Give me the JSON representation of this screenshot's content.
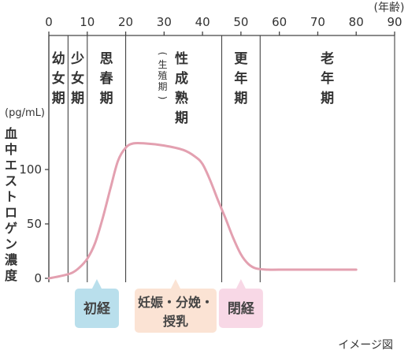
{
  "chart_data": {
    "type": "line",
    "x_axis": {
      "unit_label": "(年齢)",
      "ticks": [
        0,
        10,
        20,
        30,
        40,
        50,
        60,
        70,
        80,
        90
      ],
      "range": [
        0,
        90
      ]
    },
    "y_axis": {
      "unit": "(pg/mL)",
      "label": "血中エストロゲン濃度",
      "ticks": [
        0,
        50,
        100
      ],
      "range": [
        0,
        100
      ]
    },
    "stage_boundaries": [
      5,
      10,
      20,
      45,
      55
    ],
    "stages": [
      {
        "label": "幼女期",
        "from": 0,
        "to": 5
      },
      {
        "label": "少女期",
        "from": 5,
        "to": 10
      },
      {
        "label": "思春期",
        "from": 10,
        "to": 20
      },
      {
        "label": "性成熟期",
        "sub": "(生殖期)",
        "from": 20,
        "to": 45
      },
      {
        "label": "更年期",
        "from": 45,
        "to": 55
      },
      {
        "label": "老年期",
        "from": 55,
        "to": 90
      }
    ],
    "series": [
      {
        "color": "#e3a0b0",
        "x": [
          0,
          3,
          6,
          8,
          10,
          12,
          14,
          16,
          18,
          20,
          22,
          25,
          30,
          35,
          38,
          40,
          42,
          44,
          46,
          48,
          50,
          52,
          54,
          57,
          60,
          70,
          80
        ],
        "y": [
          0,
          2,
          5,
          10,
          18,
          32,
          55,
          82,
          108,
          120,
          124,
          124,
          122,
          118,
          112,
          105,
          90,
          72,
          55,
          37,
          22,
          13,
          9,
          8,
          8,
          8,
          8
        ]
      }
    ],
    "events": [
      {
        "label": "初経",
        "age": 12.5,
        "color": "#b9dfec"
      },
      {
        "label": "妊娠・分娩・\n授乳",
        "age": 33,
        "color": "#fbe3d4"
      },
      {
        "label": "閉経",
        "age": 50,
        "color": "#f8d8e6"
      }
    ],
    "note": "イメージ図"
  }
}
